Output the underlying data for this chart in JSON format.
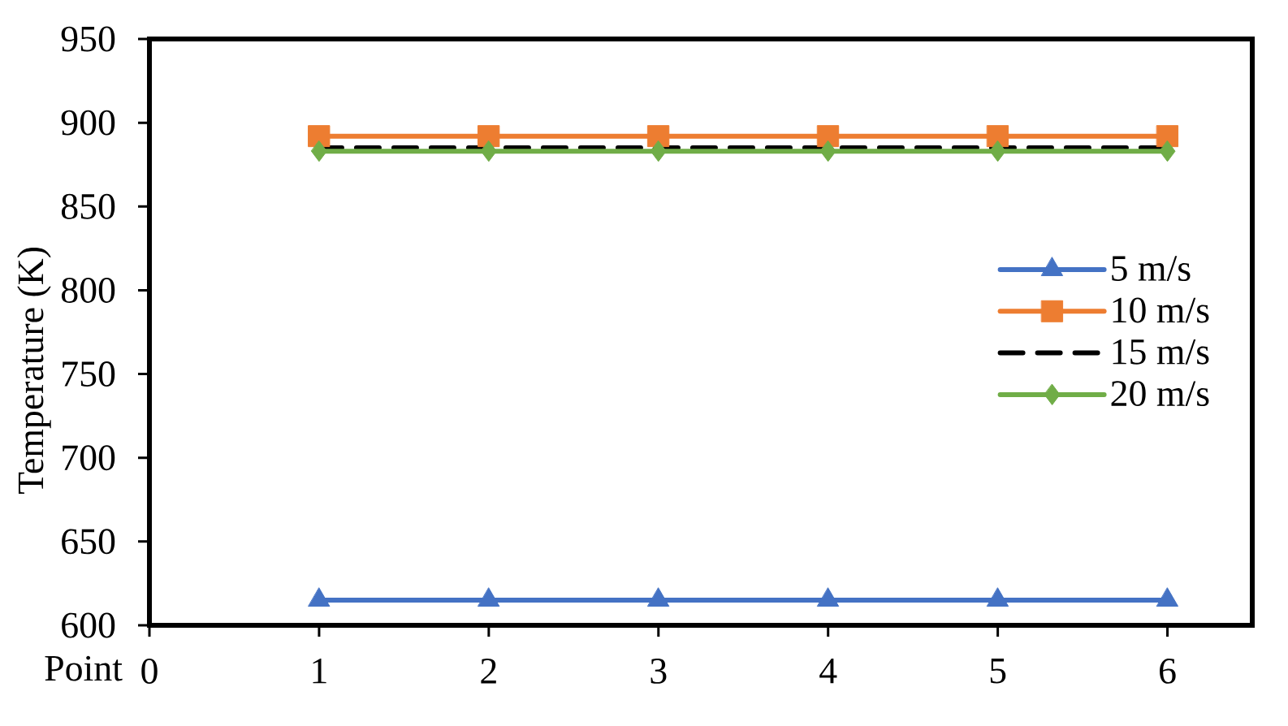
{
  "chart_data": {
    "type": "line",
    "xlabel": "Point",
    "ylabel": "Temperature (K)",
    "x": [
      1,
      2,
      3,
      4,
      5,
      6
    ],
    "xlim": [
      0,
      6.5
    ],
    "xticks": [
      0,
      1,
      2,
      3,
      4,
      5,
      6
    ],
    "ylim": [
      600,
      950
    ],
    "yticks": [
      600,
      650,
      700,
      750,
      800,
      850,
      900,
      950
    ],
    "legend": "right",
    "series": [
      {
        "name": "5 m/s",
        "color": "#4472c4",
        "marker": "triangle",
        "line_style": "solid",
        "values": [
          615,
          615,
          615,
          615,
          615,
          615
        ]
      },
      {
        "name": "10 m/s",
        "color": "#ed7d31",
        "marker": "square",
        "line_style": "solid",
        "values": [
          892,
          892,
          892,
          892,
          892,
          892
        ]
      },
      {
        "name": "15 m/s",
        "color": "#000000",
        "marker": "none",
        "line_style": "dashed",
        "values": [
          885,
          885,
          885,
          885,
          885,
          885
        ]
      },
      {
        "name": "20 m/s",
        "color": "#70ad47",
        "marker": "diamond",
        "line_style": "solid",
        "values": [
          883,
          883,
          883,
          883,
          883,
          883
        ]
      }
    ]
  }
}
